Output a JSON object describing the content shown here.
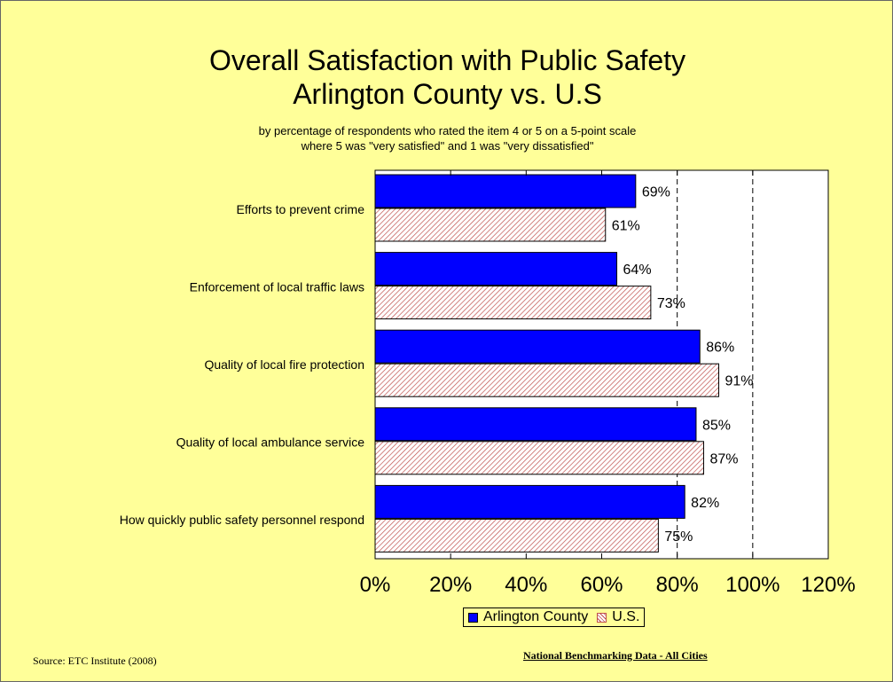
{
  "title_line1": "Overall Satisfaction with Public Safety",
  "title_line2": "Arlington County vs. U.S",
  "subtitle_line1": "by percentage of respondents who rated the item 4 or 5 on a 5-point scale",
  "subtitle_line2": "where 5 was \"very satisfied\" and 1 was \"very dissatisfied\"",
  "source": "Source:  ETC Institute (2008)",
  "footer_note": "National Benchmarking Data - All Cities",
  "colors": {
    "background": "#ffff99",
    "plot_area": "#ffffff",
    "arlington": "#0000ff",
    "us_hatch": "#c0504d"
  },
  "chart_data": {
    "type": "bar",
    "orientation": "horizontal",
    "title": "Overall Satisfaction with Public Safety Arlington County vs. U.S",
    "categories": [
      "Efforts to prevent crime",
      "Enforcement of local traffic laws",
      "Quality of local fire protection",
      "Quality of local ambulance service",
      "How quickly public safety personnel respond"
    ],
    "series": [
      {
        "name": "Arlington County",
        "values": [
          69,
          64,
          86,
          85,
          82
        ],
        "labels": [
          "69%",
          "64%",
          "86%",
          "85%",
          "82%"
        ],
        "fill": "solid-blue"
      },
      {
        "name": "U.S.",
        "values": [
          61,
          73,
          91,
          87,
          75
        ],
        "labels": [
          "61%",
          "73%",
          "91%",
          "87%",
          "75%"
        ],
        "fill": "red-diagonal-hatch"
      }
    ],
    "xlim": [
      0,
      120
    ],
    "x_ticks": [
      "0%",
      "20%",
      "40%",
      "60%",
      "80%",
      "100%",
      "120%"
    ],
    "gridlines": "dashed vertical at 80% and 100%",
    "legend_position": "bottom"
  }
}
